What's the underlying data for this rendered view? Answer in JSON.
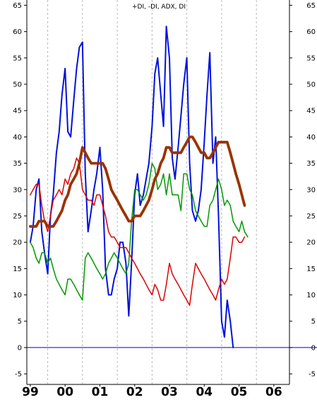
{
  "chart_data": {
    "type": "line",
    "title": "+DI, -DI, ADX, DI",
    "xlabel": "",
    "ylabel": "",
    "ylim": [
      -7,
      66
    ],
    "xlim": [
      -0.1,
      7.45
    ],
    "yticks": [
      -5,
      0,
      5,
      10,
      15,
      20,
      25,
      30,
      35,
      40,
      45,
      50,
      55,
      60,
      65
    ],
    "xticks": [
      {
        "label": "99",
        "x": 0
      },
      {
        "label": "00",
        "x": 1
      },
      {
        "label": "01",
        "x": 2
      },
      {
        "label": "02",
        "x": 3
      },
      {
        "label": "03",
        "x": 4
      },
      {
        "label": "04",
        "x": 5
      },
      {
        "label": "05",
        "x": 6
      },
      {
        "label": "06",
        "x": 7
      }
    ],
    "grid": "vertical-dashed",
    "reference_line": {
      "y": 0,
      "color": "#0000cc"
    },
    "series": [
      {
        "color": "#0011dd",
        "width": 2,
        "points": [
          [
            0.0,
            20
          ],
          [
            0.08,
            23
          ],
          [
            0.17,
            30
          ],
          [
            0.25,
            32
          ],
          [
            0.33,
            22
          ],
          [
            0.41,
            18
          ],
          [
            0.5,
            14
          ],
          [
            0.58,
            25
          ],
          [
            0.66,
            29
          ],
          [
            0.75,
            37
          ],
          [
            0.83,
            41
          ],
          [
            0.91,
            48
          ],
          [
            1.0,
            53
          ],
          [
            1.08,
            41
          ],
          [
            1.16,
            40
          ],
          [
            1.25,
            47
          ],
          [
            1.33,
            53
          ],
          [
            1.41,
            57
          ],
          [
            1.5,
            58
          ],
          [
            1.58,
            33
          ],
          [
            1.66,
            22
          ],
          [
            1.75,
            26
          ],
          [
            1.83,
            30
          ],
          [
            1.91,
            33
          ],
          [
            2.0,
            38
          ],
          [
            2.08,
            30
          ],
          [
            2.16,
            15
          ],
          [
            2.25,
            10
          ],
          [
            2.33,
            10
          ],
          [
            2.41,
            13
          ],
          [
            2.5,
            15
          ],
          [
            2.58,
            20
          ],
          [
            2.66,
            20
          ],
          [
            2.75,
            16
          ],
          [
            2.83,
            6
          ],
          [
            2.91,
            16
          ],
          [
            3.0,
            29
          ],
          [
            3.08,
            33
          ],
          [
            3.16,
            27
          ],
          [
            3.25,
            29
          ],
          [
            3.33,
            32
          ],
          [
            3.41,
            35
          ],
          [
            3.5,
            42
          ],
          [
            3.58,
            52
          ],
          [
            3.66,
            55
          ],
          [
            3.75,
            48
          ],
          [
            3.83,
            42
          ],
          [
            3.91,
            61
          ],
          [
            4.0,
            55
          ],
          [
            4.08,
            36
          ],
          [
            4.16,
            32
          ],
          [
            4.25,
            38
          ],
          [
            4.33,
            44
          ],
          [
            4.41,
            50
          ],
          [
            4.5,
            55
          ],
          [
            4.58,
            35
          ],
          [
            4.66,
            26
          ],
          [
            4.75,
            24
          ],
          [
            4.83,
            26
          ],
          [
            4.91,
            30
          ],
          [
            5.0,
            39
          ],
          [
            5.08,
            48
          ],
          [
            5.16,
            56
          ],
          [
            5.25,
            35
          ],
          [
            5.33,
            40
          ],
          [
            5.41,
            25
          ],
          [
            5.5,
            5
          ],
          [
            5.58,
            2
          ],
          [
            5.66,
            9
          ],
          [
            5.75,
            5
          ],
          [
            5.83,
            0
          ]
        ]
      },
      {
        "color": "#dd0000",
        "width": 1.5,
        "points": [
          [
            0.0,
            29
          ],
          [
            0.08,
            30
          ],
          [
            0.17,
            31
          ],
          [
            0.25,
            31
          ],
          [
            0.33,
            27
          ],
          [
            0.41,
            24
          ],
          [
            0.5,
            22
          ],
          [
            0.58,
            25
          ],
          [
            0.66,
            28
          ],
          [
            0.75,
            29
          ],
          [
            0.83,
            30
          ],
          [
            0.91,
            29
          ],
          [
            1.0,
            32
          ],
          [
            1.08,
            31
          ],
          [
            1.16,
            33
          ],
          [
            1.25,
            34
          ],
          [
            1.33,
            36
          ],
          [
            1.41,
            35
          ],
          [
            1.5,
            30
          ],
          [
            1.58,
            29
          ],
          [
            1.66,
            28
          ],
          [
            1.75,
            28
          ],
          [
            1.83,
            27
          ],
          [
            1.91,
            29
          ],
          [
            2.0,
            29
          ],
          [
            2.08,
            27
          ],
          [
            2.16,
            25
          ],
          [
            2.25,
            22
          ],
          [
            2.33,
            21
          ],
          [
            2.41,
            21
          ],
          [
            2.5,
            20
          ],
          [
            2.58,
            19
          ],
          [
            2.66,
            19
          ],
          [
            2.75,
            19
          ],
          [
            2.83,
            18
          ],
          [
            2.91,
            17
          ],
          [
            3.0,
            16
          ],
          [
            3.08,
            15
          ],
          [
            3.16,
            14
          ],
          [
            3.25,
            13
          ],
          [
            3.33,
            12
          ],
          [
            3.41,
            11
          ],
          [
            3.5,
            10
          ],
          [
            3.58,
            12
          ],
          [
            3.66,
            11
          ],
          [
            3.75,
            9
          ],
          [
            3.83,
            9
          ],
          [
            3.91,
            12
          ],
          [
            4.0,
            16
          ],
          [
            4.08,
            14
          ],
          [
            4.16,
            13
          ],
          [
            4.25,
            12
          ],
          [
            4.33,
            11
          ],
          [
            4.41,
            10
          ],
          [
            4.5,
            9
          ],
          [
            4.58,
            8
          ],
          [
            4.66,
            12
          ],
          [
            4.75,
            16
          ],
          [
            4.83,
            15
          ],
          [
            4.91,
            14
          ],
          [
            5.0,
            13
          ],
          [
            5.08,
            12
          ],
          [
            5.16,
            11
          ],
          [
            5.25,
            10
          ],
          [
            5.33,
            9
          ],
          [
            5.41,
            11
          ],
          [
            5.5,
            13
          ],
          [
            5.58,
            12
          ],
          [
            5.66,
            13
          ],
          [
            5.75,
            17
          ],
          [
            5.83,
            21
          ],
          [
            5.91,
            21
          ],
          [
            6.0,
            20
          ],
          [
            6.08,
            20
          ],
          [
            6.16,
            21
          ]
        ]
      },
      {
        "color": "#009900",
        "width": 1.5,
        "points": [
          [
            0.0,
            20
          ],
          [
            0.08,
            19
          ],
          [
            0.17,
            17
          ],
          [
            0.25,
            16
          ],
          [
            0.33,
            18
          ],
          [
            0.41,
            18
          ],
          [
            0.5,
            16
          ],
          [
            0.58,
            17
          ],
          [
            0.66,
            15
          ],
          [
            0.75,
            13
          ],
          [
            0.83,
            12
          ],
          [
            0.91,
            11
          ],
          [
            1.0,
            10
          ],
          [
            1.08,
            13
          ],
          [
            1.16,
            13
          ],
          [
            1.25,
            12
          ],
          [
            1.33,
            11
          ],
          [
            1.41,
            10
          ],
          [
            1.5,
            9
          ],
          [
            1.58,
            17
          ],
          [
            1.66,
            18
          ],
          [
            1.75,
            17
          ],
          [
            1.83,
            16
          ],
          [
            1.91,
            15
          ],
          [
            2.0,
            14
          ],
          [
            2.08,
            13
          ],
          [
            2.16,
            14
          ],
          [
            2.25,
            16
          ],
          [
            2.33,
            17
          ],
          [
            2.41,
            18
          ],
          [
            2.5,
            17
          ],
          [
            2.58,
            16
          ],
          [
            2.66,
            15
          ],
          [
            2.75,
            14
          ],
          [
            2.83,
            16
          ],
          [
            2.91,
            24
          ],
          [
            3.0,
            30
          ],
          [
            3.08,
            30
          ],
          [
            3.16,
            29
          ],
          [
            3.25,
            28
          ],
          [
            3.33,
            29
          ],
          [
            3.41,
            31
          ],
          [
            3.5,
            35
          ],
          [
            3.58,
            34
          ],
          [
            3.66,
            30
          ],
          [
            3.75,
            31
          ],
          [
            3.83,
            33
          ],
          [
            3.91,
            29
          ],
          [
            4.0,
            33
          ],
          [
            4.08,
            29
          ],
          [
            4.16,
            29
          ],
          [
            4.25,
            29
          ],
          [
            4.33,
            26
          ],
          [
            4.41,
            33
          ],
          [
            4.5,
            33
          ],
          [
            4.58,
            30
          ],
          [
            4.66,
            29
          ],
          [
            4.75,
            26
          ],
          [
            4.83,
            25
          ],
          [
            4.91,
            24
          ],
          [
            5.0,
            23
          ],
          [
            5.08,
            23
          ],
          [
            5.16,
            27
          ],
          [
            5.25,
            28
          ],
          [
            5.33,
            30
          ],
          [
            5.41,
            32
          ],
          [
            5.5,
            30
          ],
          [
            5.58,
            27
          ],
          [
            5.66,
            28
          ],
          [
            5.75,
            27
          ],
          [
            5.83,
            24
          ],
          [
            5.91,
            23
          ],
          [
            6.0,
            22
          ],
          [
            6.08,
            24
          ],
          [
            6.16,
            22
          ],
          [
            6.25,
            21
          ]
        ]
      },
      {
        "color": "#993300",
        "width": 3.8,
        "points": [
          [
            0.0,
            23
          ],
          [
            0.08,
            23
          ],
          [
            0.17,
            23
          ],
          [
            0.25,
            24
          ],
          [
            0.33,
            24
          ],
          [
            0.41,
            24
          ],
          [
            0.5,
            23
          ],
          [
            0.58,
            23
          ],
          [
            0.66,
            23
          ],
          [
            0.75,
            24
          ],
          [
            0.83,
            25
          ],
          [
            0.91,
            26
          ],
          [
            1.0,
            28
          ],
          [
            1.08,
            29
          ],
          [
            1.16,
            31
          ],
          [
            1.25,
            32
          ],
          [
            1.33,
            33
          ],
          [
            1.41,
            35
          ],
          [
            1.5,
            38
          ],
          [
            1.58,
            37
          ],
          [
            1.66,
            36
          ],
          [
            1.75,
            35
          ],
          [
            1.83,
            35
          ],
          [
            1.91,
            35
          ],
          [
            2.0,
            35
          ],
          [
            2.08,
            35
          ],
          [
            2.16,
            34
          ],
          [
            2.25,
            32
          ],
          [
            2.33,
            30
          ],
          [
            2.41,
            29
          ],
          [
            2.5,
            28
          ],
          [
            2.58,
            27
          ],
          [
            2.66,
            26
          ],
          [
            2.75,
            25
          ],
          [
            2.83,
            24
          ],
          [
            2.91,
            24
          ],
          [
            3.0,
            25
          ],
          [
            3.08,
            25
          ],
          [
            3.16,
            25
          ],
          [
            3.25,
            26
          ],
          [
            3.33,
            27
          ],
          [
            3.41,
            28
          ],
          [
            3.5,
            30
          ],
          [
            3.58,
            32
          ],
          [
            3.66,
            33
          ],
          [
            3.75,
            35
          ],
          [
            3.83,
            36
          ],
          [
            3.91,
            38
          ],
          [
            4.0,
            38
          ],
          [
            4.08,
            37
          ],
          [
            4.16,
            37
          ],
          [
            4.25,
            37
          ],
          [
            4.33,
            37
          ],
          [
            4.41,
            38
          ],
          [
            4.5,
            39
          ],
          [
            4.58,
            40
          ],
          [
            4.66,
            40
          ],
          [
            4.75,
            39
          ],
          [
            4.83,
            38
          ],
          [
            4.91,
            37
          ],
          [
            5.0,
            37
          ],
          [
            5.08,
            36
          ],
          [
            5.16,
            36
          ],
          [
            5.25,
            37
          ],
          [
            5.33,
            38
          ],
          [
            5.41,
            39
          ],
          [
            5.5,
            39
          ],
          [
            5.58,
            39
          ],
          [
            5.66,
            39
          ],
          [
            5.75,
            37
          ],
          [
            5.83,
            35
          ],
          [
            5.91,
            33
          ],
          [
            6.0,
            31
          ],
          [
            6.08,
            29
          ],
          [
            6.16,
            27
          ]
        ]
      }
    ]
  }
}
